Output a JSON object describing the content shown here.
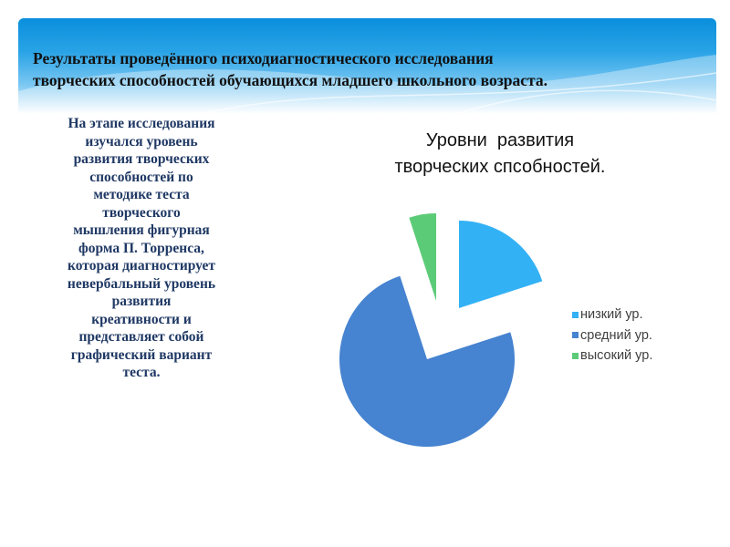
{
  "slide": {
    "title_lines": [
      "Результаты проведённого психодиагностического исследования",
      "творческих способностей обучающихся младшего школьного возраста."
    ],
    "description_lines": [
      "На этапе исследования",
      "изучался уровень",
      "развития творческих",
      "способностей по",
      "методике теста",
      "творческого",
      "мышления фигурная",
      "форма П. Торренса,",
      "которая диагностирует",
      "невербальный уровень",
      "развития",
      "креативности и",
      "представляет собой",
      "графический вариант",
      "теста."
    ]
  },
  "chart_data": {
    "type": "pie",
    "title_lines": [
      "Уровни  развития",
      "творческих спсобностей."
    ],
    "categories": [
      "низкий ур.",
      "средний ур.",
      "высокий ур."
    ],
    "values": [
      20,
      75,
      5
    ],
    "colors": [
      "#33b1f5",
      "#4683d0",
      "#5ccb78"
    ],
    "exploded": true,
    "legend_position": "right"
  }
}
